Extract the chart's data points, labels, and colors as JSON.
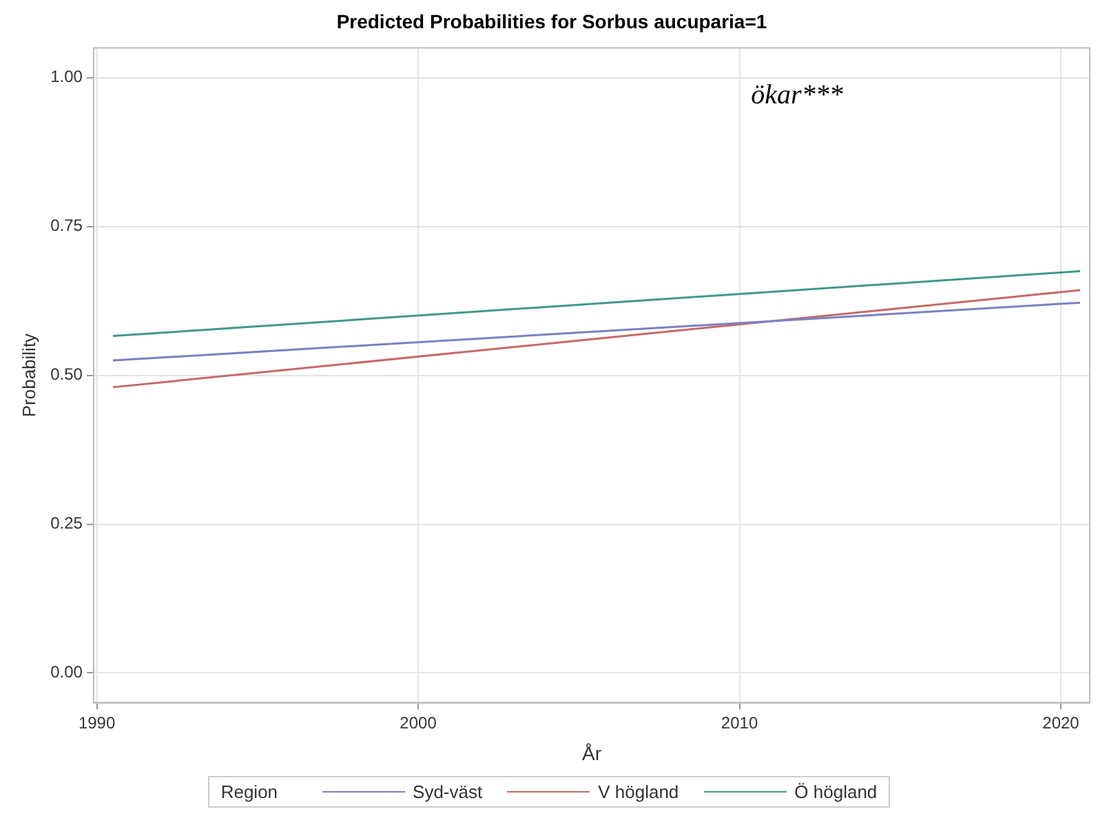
{
  "chart_data": {
    "type": "line",
    "title": "Predicted Probabilities for Sorbus aucuparia=1",
    "xlabel": "År",
    "ylabel": "Probability",
    "legend_title": "Region",
    "annotations": [
      "ökar***"
    ],
    "xlim": [
      1989.9,
      2020.9
    ],
    "xticks": [
      1990,
      2000,
      2010,
      2020
    ],
    "ylim": [
      -0.05,
      1.05
    ],
    "yticks": [
      {
        "value": 0,
        "label": "0.00"
      },
      {
        "value": 0.25,
        "label": "0.25"
      },
      {
        "value": 0.5,
        "label": "0.50"
      },
      {
        "value": 0.75,
        "label": "0.75"
      },
      {
        "value": 1,
        "label": "1.00"
      }
    ],
    "x": [
      1990.5,
      2020.6
    ],
    "series": [
      {
        "name": "Syd-väst",
        "color": "#7b80c4",
        "values": [
          0.525,
          0.622
        ]
      },
      {
        "name": "V högland",
        "color": "#c46a66",
        "values": [
          0.48,
          0.643
        ]
      },
      {
        "name": "Ö högland",
        "color": "#3f9a88",
        "values": [
          0.566,
          0.675
        ]
      }
    ],
    "grid": true,
    "legend": "bottom",
    "marker": "none",
    "line_style": "solid"
  }
}
